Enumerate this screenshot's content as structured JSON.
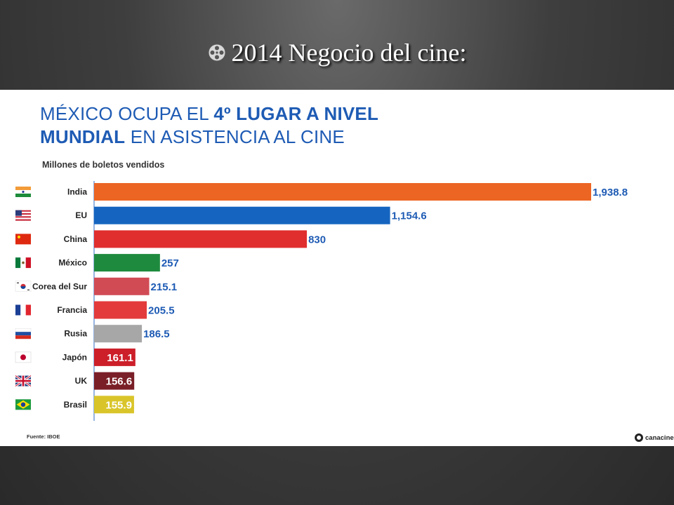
{
  "slide": {
    "title": "2014 Negocio del cine:",
    "title_icon": "film-reel-icon"
  },
  "infographic": {
    "headline_regular_1": "MÉXICO OCUPA EL ",
    "headline_bold_1": "4º LUGAR A NIVEL",
    "headline_bold_2": "MUNDIAL",
    "headline_regular_2": " EN ASISTENCIA AL CINE",
    "headline_color": "#1e5bb4",
    "source": "Fuente: IBOE",
    "logo_text": "canacine"
  },
  "chart_data": {
    "type": "bar",
    "orientation": "horizontal",
    "title": "MÉXICO OCUPA EL 4º LUGAR A NIVEL MUNDIAL EN ASISTENCIA AL CINE",
    "subtitle": "Millones de boletos vendidos",
    "categories": [
      "India",
      "EU",
      "China",
      "México",
      "Corea del Sur",
      "Francia",
      "Rusia",
      "Japón",
      "UK",
      "Brasil"
    ],
    "values": [
      1938.8,
      1154.6,
      830,
      257,
      215.1,
      205.5,
      186.5,
      161.1,
      156.6,
      155.9
    ],
    "value_labels": [
      "1,938.8",
      "1,154.6",
      "830",
      "257",
      "215.1",
      "205.5",
      "186.5",
      "161.1",
      "156.6",
      "155.9"
    ],
    "bar_colors": [
      "#ec6523",
      "#1565c0",
      "#e02e2e",
      "#1e8a3e",
      "#d14b55",
      "#e33b3b",
      "#a7a7a7",
      "#cc1f2a",
      "#7a1f27",
      "#d9c52a"
    ],
    "label_inside": [
      false,
      false,
      false,
      false,
      false,
      false,
      false,
      true,
      true,
      true
    ],
    "flags": [
      "flag-india-icon",
      "flag-usa-icon",
      "flag-china-icon",
      "flag-mexico-icon",
      "flag-south-korea-icon",
      "flag-france-icon",
      "flag-russia-icon",
      "flag-japan-icon",
      "flag-uk-icon",
      "flag-brazil-icon"
    ],
    "xlim": [
      0,
      1938.8
    ],
    "grid": false,
    "legend": "none"
  }
}
